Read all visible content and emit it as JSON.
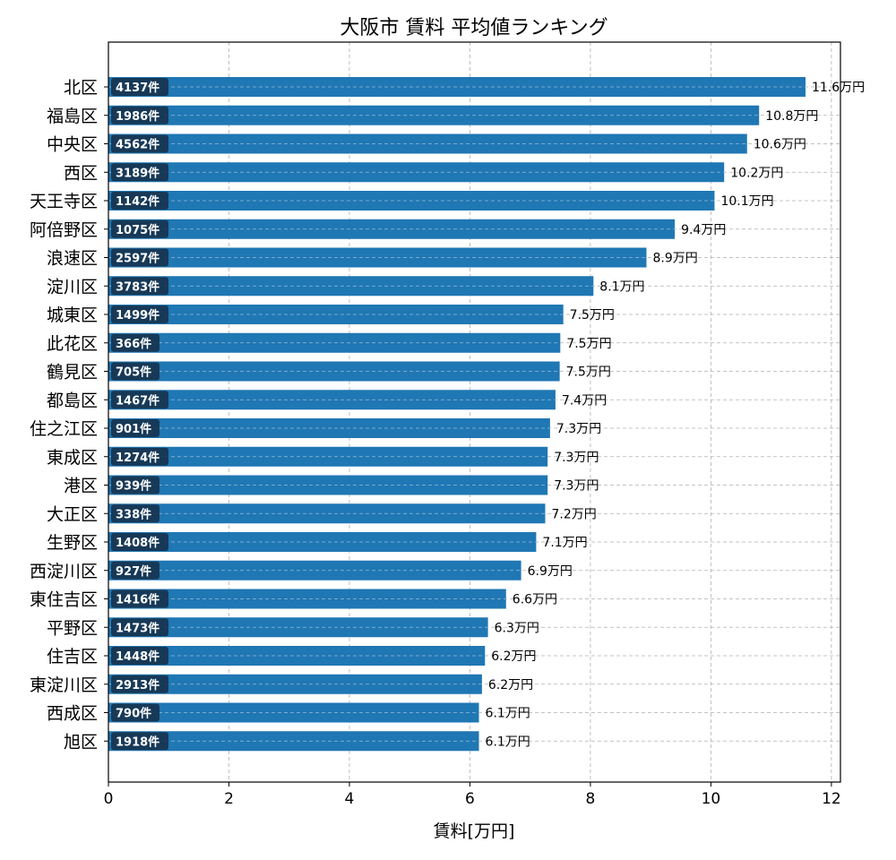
{
  "chart_data": {
    "type": "bar",
    "orientation": "horizontal",
    "title": "大阪市 賃料 平均値ランキング",
    "xlabel": "賃料[万円]",
    "ylabel": "",
    "xlim": [
      0,
      12.15
    ],
    "xticks": [
      0,
      2,
      4,
      6,
      8,
      10,
      12
    ],
    "grid": true,
    "bar_color": "#1f77b4",
    "badge_color": "#17344f",
    "categories": [
      "北区",
      "福島区",
      "中央区",
      "西区",
      "天王寺区",
      "阿倍野区",
      "浪速区",
      "淀川区",
      "城東区",
      "此花区",
      "鶴見区",
      "都島区",
      "住之江区",
      "東成区",
      "港区",
      "大正区",
      "生野区",
      "西淀川区",
      "東住吉区",
      "平野区",
      "住吉区",
      "東淀川区",
      "西成区",
      "旭区"
    ],
    "values": [
      11.6,
      10.8,
      10.6,
      10.2,
      10.1,
      9.4,
      8.9,
      8.1,
      7.5,
      7.5,
      7.5,
      7.4,
      7.3,
      7.3,
      7.3,
      7.2,
      7.1,
      6.9,
      6.6,
      6.3,
      6.2,
      6.2,
      6.1,
      6.1
    ],
    "plot_values": [
      11.57,
      10.8,
      10.6,
      10.22,
      10.06,
      9.4,
      8.93,
      8.05,
      7.55,
      7.5,
      7.49,
      7.42,
      7.33,
      7.29,
      7.29,
      7.25,
      7.1,
      6.85,
      6.6,
      6.3,
      6.25,
      6.2,
      6.15,
      6.15
    ],
    "value_labels": [
      "11.6万円",
      "10.8万円",
      "10.6万円",
      "10.2万円",
      "10.1万円",
      "9.4万円",
      "8.9万円",
      "8.1万円",
      "7.5万円",
      "7.5万円",
      "7.5万円",
      "7.4万円",
      "7.3万円",
      "7.3万円",
      "7.3万円",
      "7.2万円",
      "7.1万円",
      "6.9万円",
      "6.6万円",
      "6.3万円",
      "6.2万円",
      "6.2万円",
      "6.1万円",
      "6.1万円"
    ],
    "counts": [
      "4137件",
      "1986件",
      "4562件",
      "3189件",
      "1142件",
      "1075件",
      "2597件",
      "3783件",
      "1499件",
      "366件",
      "705件",
      "1467件",
      "901件",
      "1274件",
      "939件",
      "338件",
      "1408件",
      "927件",
      "1416件",
      "1473件",
      "1448件",
      "2913件",
      "790件",
      "1918件"
    ]
  }
}
